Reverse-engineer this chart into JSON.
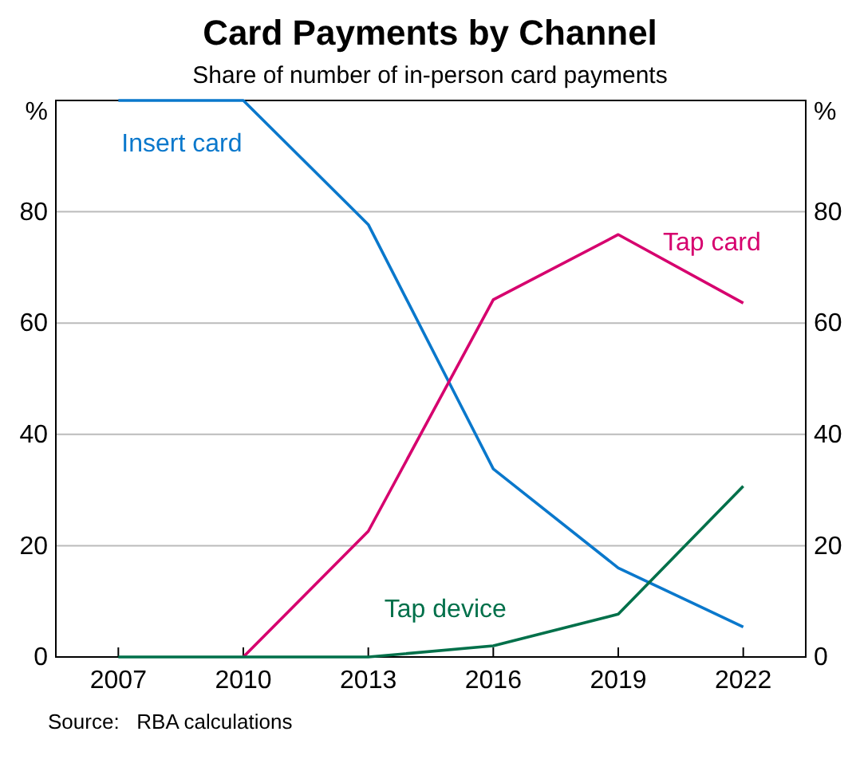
{
  "chart_data": {
    "type": "line",
    "title": "Card Payments by Channel",
    "subtitle": "Share of number of in-person card payments",
    "ylabel": "%",
    "y2label": "%",
    "x": [
      2007,
      2010,
      2013,
      2016,
      2019,
      2022
    ],
    "xlim": [
      2005.5,
      2023.5
    ],
    "xticks": [
      2007,
      2010,
      2013,
      2016,
      2019,
      2022
    ],
    "ylim": [
      0,
      100
    ],
    "yticks": [
      0,
      20,
      40,
      60,
      80
    ],
    "y2lim": [
      0,
      100
    ],
    "y2ticks": [
      0,
      20,
      40,
      60,
      80
    ],
    "grid": "y",
    "marker": "none",
    "line_style": "solid",
    "series": [
      {
        "name": "Insert card",
        "color": "#0a78cc",
        "values": [
          100,
          100,
          77.7,
          33.8,
          16,
          5.4
        ]
      },
      {
        "name": "Tap card",
        "color": "#d6006e",
        "values": [
          null,
          0,
          22.6,
          64.2,
          75.9,
          63.6
        ]
      },
      {
        "name": "Tap device",
        "color": "#00704a",
        "values": [
          0,
          0,
          0,
          2,
          7.7,
          30.7
        ]
      }
    ],
    "annotations": [
      "Source:   RBA calculations"
    ]
  }
}
